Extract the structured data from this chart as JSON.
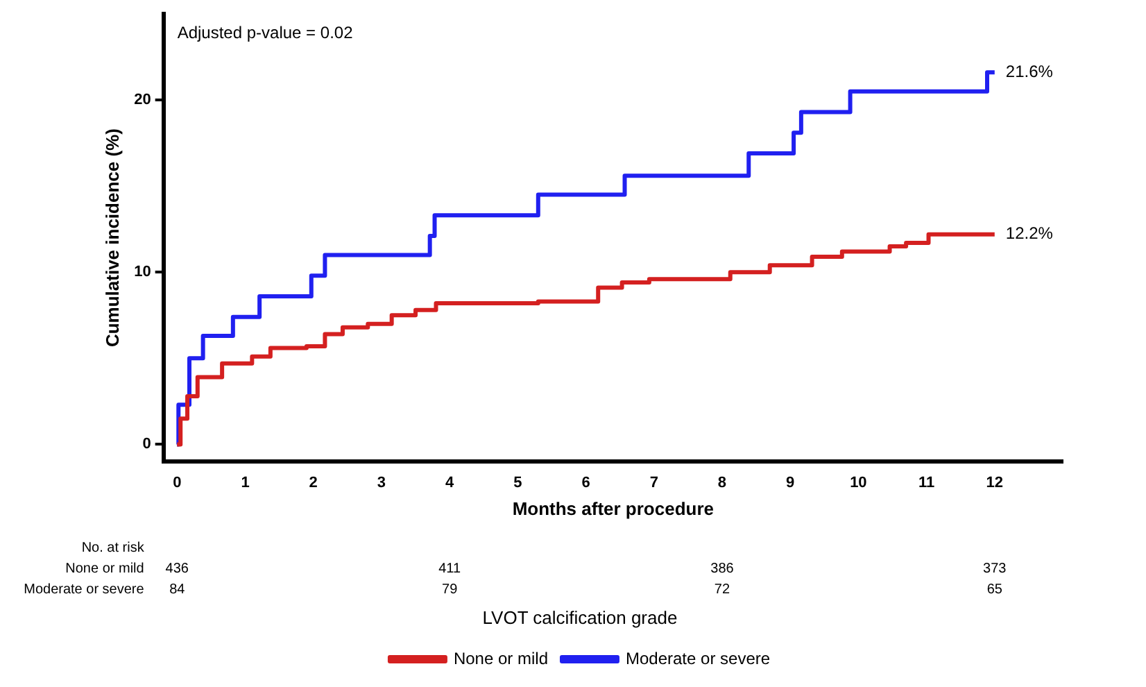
{
  "chart_data": {
    "type": "step",
    "xlabel": "Months after procedure",
    "ylabel": "Cumulative incidence (%)",
    "legend_title": "LVOT calcification grade",
    "xlim": [
      -0.2,
      13
    ],
    "xticks": [
      0,
      1,
      2,
      3,
      4,
      5,
      6,
      7,
      8,
      9,
      10,
      11,
      12
    ],
    "ylim": [
      -1,
      25
    ],
    "yticks": [
      0,
      10,
      20
    ],
    "grid": false,
    "legend": "bottom",
    "marker": "none",
    "line_style": "solid",
    "series": [
      {
        "name": "None or mild",
        "color": "#d42020",
        "x": [
          0,
          0.05,
          0.15,
          0.3,
          0.66,
          1.1,
          1.37,
          1.9,
          2.17,
          2.43,
          2.8,
          3.15,
          3.5,
          3.8,
          5.3,
          6.18,
          6.53,
          6.93,
          8.12,
          8.7,
          9.32,
          9.76,
          10.46,
          10.7,
          11.03,
          12
        ],
        "values": [
          0,
          1.5,
          2.8,
          3.9,
          4.7,
          5.1,
          5.6,
          5.7,
          6.4,
          6.8,
          7.0,
          7.5,
          7.8,
          8.2,
          8.3,
          9.1,
          9.4,
          9.6,
          10.0,
          10.4,
          10.9,
          11.2,
          11.5,
          11.7,
          12.2,
          12.2
        ]
      },
      {
        "name": "Moderate or severe",
        "color": "#2020f0",
        "x": [
          0,
          0.02,
          0.18,
          0.38,
          0.82,
          1.21,
          1.97,
          2.17,
          3.71,
          3.78,
          5.3,
          6.57,
          8.39,
          9.05,
          9.16,
          9.88,
          11.89,
          12
        ],
        "values": [
          0,
          2.3,
          5.0,
          6.3,
          7.4,
          8.6,
          9.8,
          11.0,
          12.1,
          13.3,
          14.5,
          15.6,
          16.9,
          18.1,
          19.3,
          20.5,
          21.6,
          21.6
        ]
      }
    ],
    "annotations": [
      "Adjusted p-value = 0.02",
      {
        "text": "21.6%",
        "x": 12,
        "y": 21.6
      },
      {
        "text": "12.2%",
        "x": 12,
        "y": 12.2
      },
      "No. at risk",
      "None or mild",
      "Moderate or severe",
      "436",
      "411",
      "386",
      "373",
      "84",
      "79",
      "72",
      "65"
    ]
  }
}
